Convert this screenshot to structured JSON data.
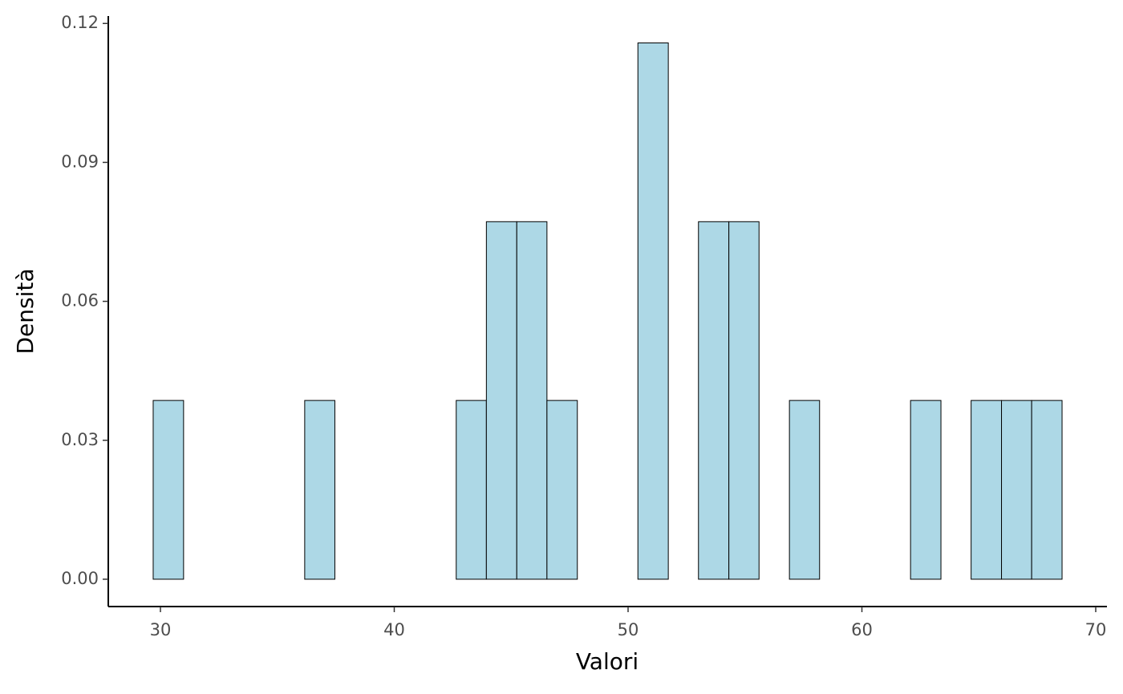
{
  "chart_data": {
    "type": "histogram",
    "x_label": "Valori",
    "y_label": "Densità",
    "bins": [
      29.69,
      30.99,
      32.28,
      33.58,
      34.87,
      36.17,
      37.46,
      38.76,
      40.05,
      41.35,
      42.65,
      43.94,
      45.24,
      46.53,
      47.83,
      49.12,
      50.42,
      51.72,
      53.01,
      54.31,
      55.6,
      56.9,
      58.19,
      59.49,
      60.78,
      62.08,
      63.38,
      64.67,
      65.97,
      67.26,
      68.56
    ],
    "values": [
      0.0386,
      0,
      0,
      0,
      0,
      0.0386,
      0,
      0,
      0,
      0,
      0.0386,
      0.0772,
      0.0772,
      0.0386,
      0,
      0,
      0.1158,
      0,
      0.0772,
      0.0772,
      0,
      0.0386,
      0,
      0,
      0,
      0.0386,
      0,
      0.0386,
      0.0386,
      0.0386
    ],
    "color": "#add8e6",
    "edge_color": "#000000",
    "xlim": [
      27.77,
      70.48
    ],
    "xticks": [
      30,
      40,
      50,
      60,
      70
    ],
    "ylim": [
      -0.0059,
      0.1216
    ],
    "yticks": [
      {
        "value": 0,
        "label": "0.00"
      },
      {
        "value": 0.03,
        "label": "0.03"
      },
      {
        "value": 0.06,
        "label": "0.06"
      },
      {
        "value": 0.09,
        "label": "0.09"
      },
      {
        "value": 0.12,
        "label": "0.12"
      }
    ],
    "grid": false
  }
}
